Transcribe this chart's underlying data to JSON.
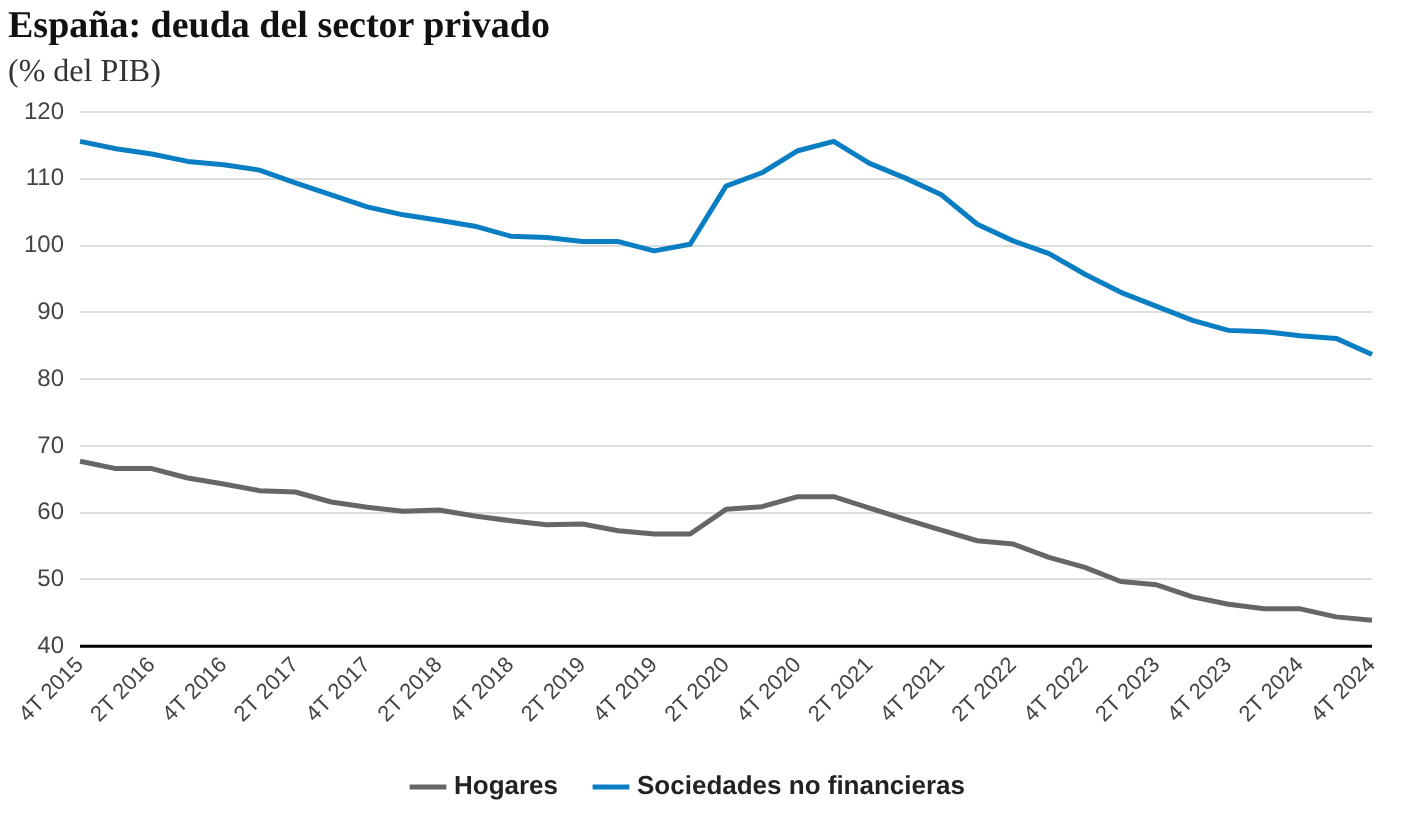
{
  "chart_data": {
    "type": "line",
    "title": "España: deuda del sector privado",
    "subtitle": "(% del PIB)",
    "categories": [
      "4T 2015",
      null,
      "2T 2016",
      null,
      "4T 2016",
      null,
      "2T 2017",
      null,
      "4T 2017",
      null,
      "2T 2018",
      null,
      "4T 2018",
      null,
      "2T 2019",
      null,
      "4T 2019",
      null,
      "2T 2020",
      null,
      "4T 2020",
      null,
      "2T 2021",
      null,
      "4T 2021",
      null,
      "2T 2022",
      null,
      "4T 2022",
      null,
      "2T 2023",
      null,
      "4T 2023",
      null,
      "2T 2024",
      null,
      "4T 2024"
    ],
    "series": [
      {
        "name": "Hogares",
        "color": "#666666",
        "values": [
          67.7,
          66.6,
          66.6,
          65.2,
          64.3,
          63.3,
          63.1,
          61.6,
          60.8,
          60.2,
          60.4,
          59.5,
          58.8,
          58.2,
          58.3,
          57.3,
          56.8,
          56.8,
          60.5,
          60.9,
          62.4,
          62.4,
          60.7,
          59.0,
          57.4,
          55.8,
          55.3,
          53.3,
          51.8,
          49.7,
          49.2,
          47.4,
          46.3,
          45.6,
          45.6,
          44.4,
          43.9
        ]
      },
      {
        "name": "Sociedades no financieras",
        "color": "#0a7ec2",
        "values": [
          115.6,
          114.5,
          113.7,
          112.6,
          112.1,
          111.3,
          109.4,
          107.6,
          105.8,
          104.6,
          103.8,
          102.9,
          101.4,
          101.2,
          100.6,
          100.6,
          99.2,
          100.2,
          108.9,
          110.9,
          114.2,
          115.6,
          112.3,
          110.1,
          107.6,
          103.2,
          100.7,
          98.8,
          95.7,
          93.0,
          90.9,
          88.8,
          87.3,
          87.1,
          86.5,
          86.1,
          83.7
        ]
      }
    ],
    "ylim": [
      40,
      120
    ],
    "yticks": [
      40,
      50,
      60,
      70,
      80,
      90,
      100,
      110,
      120
    ],
    "grid": "y",
    "legend": "bottom",
    "marker": "none",
    "line_style": "solid"
  }
}
